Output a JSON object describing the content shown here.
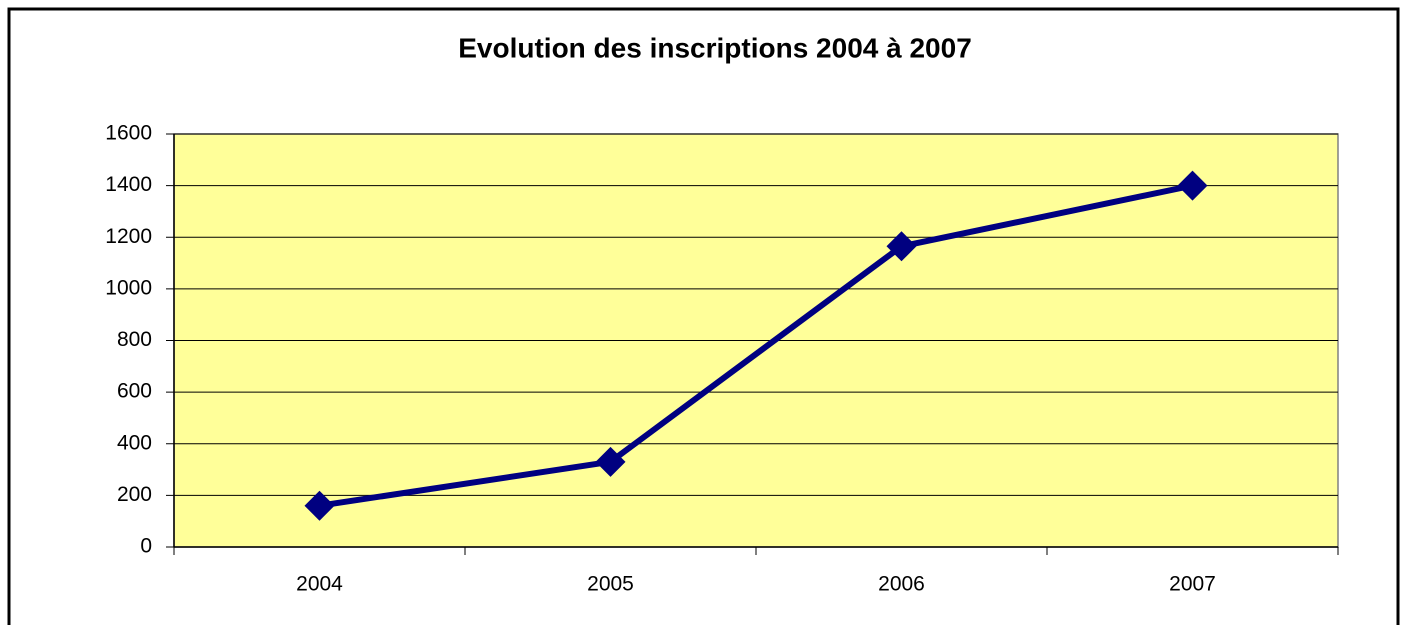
{
  "chart_data": {
    "type": "line",
    "title": "Evolution des inscriptions 2004 à 2007",
    "categories": [
      "2004",
      "2005",
      "2006",
      "2007"
    ],
    "series": [
      {
        "color": "#000080",
        "values": [
          160,
          330,
          1165,
          1400
        ]
      }
    ],
    "ylim": [
      0,
      1600
    ],
    "yticks": [
      0,
      200,
      400,
      600,
      800,
      1000,
      1200,
      1400,
      1600
    ],
    "grid": true,
    "plot_background": "#ffff99"
  }
}
